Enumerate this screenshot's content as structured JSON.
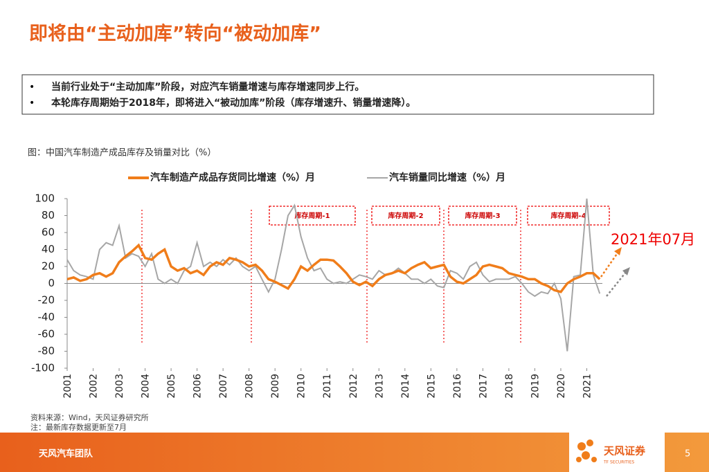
{
  "title": "即将由“主动加库”转向“被动加库”",
  "bullets": [
    "当前行业处于“主动加库”阶段，对应汽车销量增速与库存增速同步上行。",
    "本轮库存周期始于2018年，即将进入“被动加库”阶段（库存增速升、销量增速降）。"
  ],
  "chart_data": {
    "type": "line",
    "title": "图：中国汽车制造产成品库存及销量对比（%）",
    "x": [
      2001,
      2001.25,
      2001.5,
      2001.75,
      2002,
      2002.25,
      2002.5,
      2002.75,
      2003,
      2003.25,
      2003.5,
      2003.75,
      2004,
      2004.25,
      2004.5,
      2004.75,
      2005,
      2005.25,
      2005.5,
      2005.75,
      2006,
      2006.25,
      2006.5,
      2006.75,
      2007,
      2007.25,
      2007.5,
      2007.75,
      2008,
      2008.25,
      2008.5,
      2008.75,
      2009,
      2009.25,
      2009.5,
      2009.75,
      2010,
      2010.25,
      2010.5,
      2010.75,
      2011,
      2011.25,
      2011.5,
      2011.75,
      2012,
      2012.25,
      2012.5,
      2012.75,
      2013,
      2013.25,
      2013.5,
      2013.75,
      2014,
      2014.25,
      2014.5,
      2014.75,
      2015,
      2015.25,
      2015.5,
      2015.75,
      2016,
      2016.25,
      2016.5,
      2016.75,
      2017,
      2017.25,
      2017.5,
      2017.75,
      2018,
      2018.25,
      2018.5,
      2018.75,
      2019,
      2019.25,
      2019.5,
      2019.75,
      2020,
      2020.25,
      2020.5,
      2020.75,
      2021,
      2021.25,
      2021.5
    ],
    "series": [
      {
        "name": "汽车制造产成品存货同比增速（%）月",
        "color": "#f07d1a",
        "values": [
          5,
          7,
          3,
          5,
          10,
          12,
          8,
          12,
          25,
          32,
          38,
          45,
          30,
          28,
          35,
          40,
          20,
          15,
          18,
          12,
          15,
          10,
          20,
          25,
          22,
          30,
          28,
          25,
          20,
          22,
          15,
          5,
          2,
          -2,
          -6,
          5,
          20,
          15,
          22,
          28,
          28,
          27,
          20,
          12,
          2,
          -2,
          2,
          -3,
          5,
          10,
          12,
          15,
          12,
          18,
          22,
          25,
          18,
          20,
          22,
          8,
          2,
          0,
          5,
          10,
          20,
          22,
          20,
          18,
          12,
          10,
          8,
          5,
          5,
          0,
          -3,
          -8,
          -10,
          0,
          5,
          8,
          12,
          12,
          5
        ]
      },
      {
        "name": "汽车销量同比增速（%）月",
        "color": "#a6a6a6",
        "values": [
          28,
          15,
          10,
          8,
          5,
          40,
          48,
          45,
          68,
          30,
          35,
          32,
          20,
          35,
          5,
          0,
          5,
          0,
          15,
          20,
          48,
          20,
          25,
          20,
          28,
          22,
          30,
          20,
          15,
          20,
          5,
          -10,
          5,
          40,
          80,
          92,
          55,
          30,
          15,
          18,
          5,
          0,
          2,
          0,
          5,
          10,
          8,
          5,
          15,
          10,
          12,
          18,
          12,
          5,
          5,
          0,
          5,
          -3,
          -5,
          15,
          12,
          5,
          20,
          25,
          10,
          2,
          5,
          5,
          5,
          8,
          0,
          -10,
          -15,
          -10,
          -12,
          0,
          -18,
          -80,
          8,
          10,
          100,
          10,
          -12
        ]
      }
    ],
    "xlim": [
      2001,
      2021.6
    ],
    "xticks": [
      2001,
      2002,
      2003,
      2004,
      2005,
      2006,
      2007,
      2008,
      2009,
      2010,
      2011,
      2012,
      2013,
      2014,
      2015,
      2016,
      2017,
      2018,
      2019,
      2020,
      2021
    ],
    "ylim": [
      -100,
      100
    ],
    "yticks": [
      -100,
      -80,
      -60,
      -40,
      -20,
      0,
      20,
      40,
      60,
      80,
      100
    ],
    "grid": false,
    "legend": "top",
    "annotations": [
      "库存周期-1",
      "库存周期-2",
      "库存周期-3",
      "库存周期-4",
      "2021年07月"
    ]
  },
  "source": "资料来源：Wind，天风证券研究所",
  "note": "注：最新库存数据更新至7月",
  "footer": "天风汽车团队",
  "logo": "天风证券",
  "logo_en": "TF SECURITIES",
  "page": "5"
}
